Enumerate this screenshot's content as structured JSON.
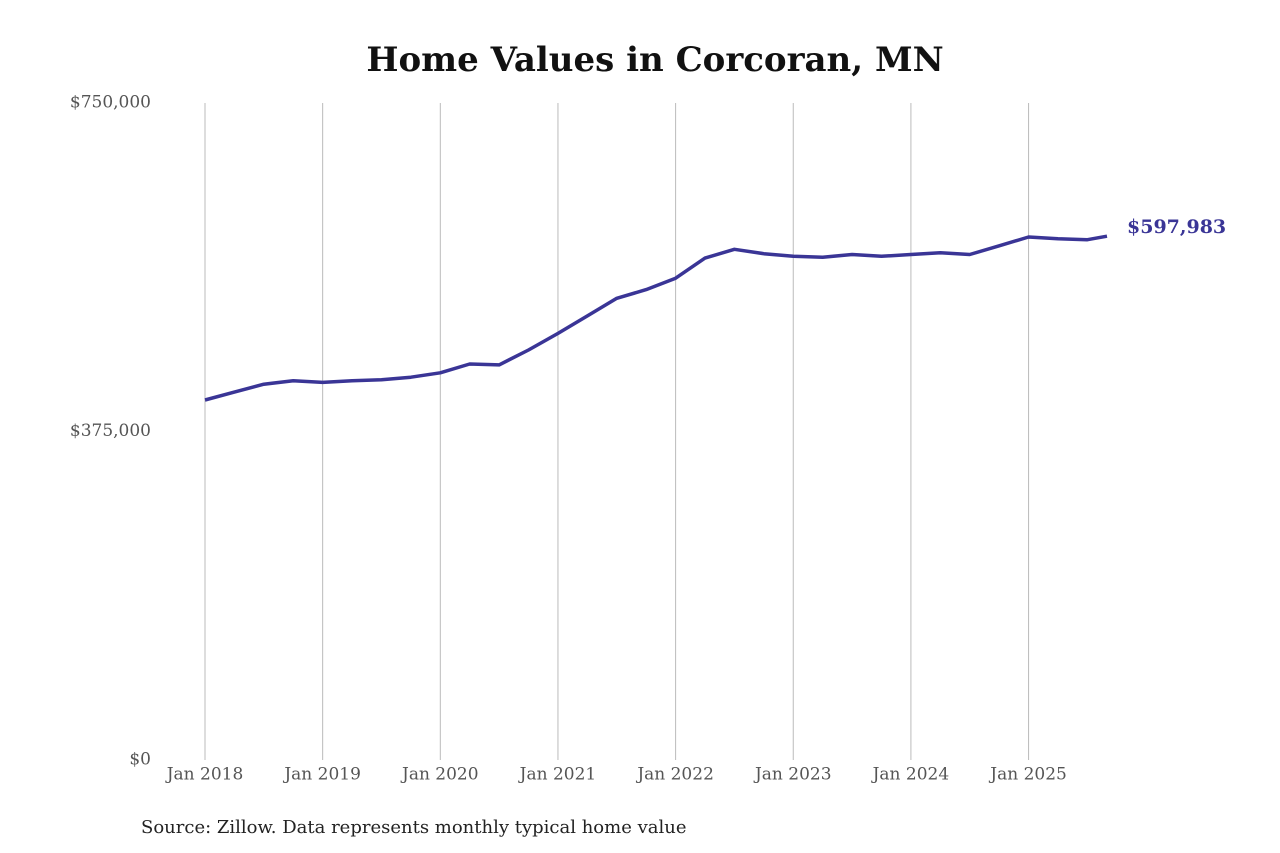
{
  "chart_data": {
    "type": "line",
    "title": "Home Values in Corcoran, MN",
    "source": "Source: Zillow. Data represents monthly typical home value",
    "x": [
      "2018-01",
      "2018-04",
      "2018-07",
      "2018-10",
      "2019-01",
      "2019-04",
      "2019-07",
      "2019-10",
      "2020-01",
      "2020-04",
      "2020-07",
      "2020-10",
      "2021-01",
      "2021-04",
      "2021-07",
      "2021-10",
      "2022-01",
      "2022-04",
      "2022-07",
      "2022-10",
      "2023-01",
      "2023-04",
      "2023-07",
      "2023-10",
      "2024-01",
      "2024-04",
      "2024-07",
      "2024-10",
      "2025-01",
      "2025-04",
      "2025-07",
      "2025-09"
    ],
    "series": [
      {
        "name": "Typical home value",
        "color": "#3a3596",
        "values": [
          411000,
          420000,
          429000,
          433000,
          431000,
          433000,
          434000,
          437000,
          442000,
          452000,
          451000,
          468000,
          487000,
          507000,
          527000,
          537000,
          550000,
          573000,
          583000,
          578000,
          575000,
          574000,
          577000,
          575000,
          577000,
          579000,
          577000,
          587000,
          597000,
          595000,
          594000,
          597983
        ],
        "value_labels": [
          null,
          null,
          null,
          null,
          null,
          null,
          null,
          null,
          null,
          null,
          null,
          null,
          null,
          null,
          null,
          null,
          null,
          null,
          null,
          null,
          null,
          null,
          null,
          null,
          null,
          null,
          null,
          null,
          null,
          null,
          null,
          "$597,983"
        ]
      }
    ],
    "xlim": [
      "2018-01",
      "2025-09"
    ],
    "xticks": [
      {
        "value": "2018-01",
        "label": "Jan 2018"
      },
      {
        "value": "2019-01",
        "label": "Jan 2019"
      },
      {
        "value": "2020-01",
        "label": "Jan 2020"
      },
      {
        "value": "2021-01",
        "label": "Jan 2021"
      },
      {
        "value": "2022-01",
        "label": "Jan 2022"
      },
      {
        "value": "2023-01",
        "label": "Jan 2023"
      },
      {
        "value": "2024-01",
        "label": "Jan 2024"
      },
      {
        "value": "2025-01",
        "label": "Jan 2025"
      }
    ],
    "ylim": [
      0,
      750000
    ],
    "yticks": [
      {
        "value": 0,
        "label": "$0"
      },
      {
        "value": 375000,
        "label": "$375,000"
      },
      {
        "value": 750000,
        "label": "$750,000"
      }
    ],
    "grid": "x"
  }
}
